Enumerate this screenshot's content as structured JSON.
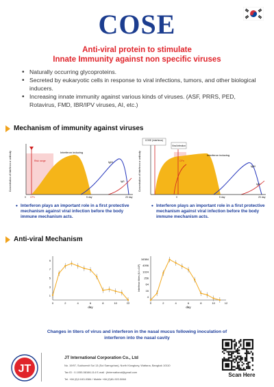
{
  "title": "COSE",
  "subtitle_line1": "Anti-viral protein to stimulate",
  "subtitle_line2": "Innate Immunity against non specific viruses",
  "bullets": [
    "Naturally occurring glycoproteins.",
    "Secreted by eukaryotic cells in response to viral infections, tumors, and other biological inducers.",
    "Increasing innate immunity against various kinds of viruses. (ASF, PRRS, PED, Rotavirus, FMD, IBR/IPV viruses, AI, etc.)"
  ],
  "section1": "Mechanism of immunity against viruses",
  "chart1": {
    "ylabel": "Concentration of Interferon or antibody",
    "label_interferon": "Interferon inducing",
    "label_igm": "IgM",
    "label_igg": "IgG",
    "label_risk": "Risk range",
    "x_ticks": [
      "0",
      "CPn",
      "5 day",
      "20 day"
    ]
  },
  "chart2": {
    "ylabel": "Concentration of Interferon or antibody",
    "label_cose": "COSE (Interferon)",
    "label_viral": "Viral Infection",
    "label_interferon": "Interferon inducing",
    "label_risk": "CPn",
    "label_igm": "IgM",
    "label_igg": "IgG",
    "x_ticks": [
      "0",
      "5 day",
      "20 day"
    ]
  },
  "note1": "Interferon plays an important role in a first protective mechanism against viral infection before the body immune mechanism acts.",
  "note2": "Interferon plays an important role in a first protective mechanism against viral infection before the body immune mechanism acts.",
  "section2": "Anti-viral Mechanism",
  "chart_data": [
    {
      "type": "line",
      "xlabel": "day",
      "ylabel": "",
      "x": [
        0,
        1,
        2,
        3,
        4,
        5,
        6,
        7,
        8,
        9,
        10,
        11,
        12
      ],
      "values": [
        1,
        5.5,
        7,
        7.5,
        7,
        6.5,
        6.2,
        4.8,
        2,
        2.2,
        1.8,
        1.5,
        0
      ],
      "y_ticks": [
        "1",
        "3",
        "5",
        "7",
        "9"
      ],
      "x_ticks": [
        "0",
        "2",
        "4",
        "6",
        "8",
        "10",
        "12"
      ],
      "ylim": [
        0,
        9
      ],
      "xlim": [
        0,
        12
      ]
    },
    {
      "type": "line",
      "xlabel": "day",
      "ylabel": "Interferon titres (IU x 10³)",
      "x": [
        0,
        1,
        2,
        3,
        4,
        5,
        6,
        7,
        8,
        9,
        10,
        11
      ],
      "values": [
        0,
        2,
        8,
        12,
        11,
        10,
        9,
        6,
        2,
        1.5,
        0.5,
        0
      ],
      "y_ticks": [
        "4",
        "16",
        "64",
        "256",
        "1024",
        "4096",
        "16384"
      ],
      "x_ticks": [
        "0",
        "2",
        "4",
        "6",
        "8",
        "10",
        "12"
      ],
      "ylim": [
        0,
        13
      ],
      "xlim": [
        0,
        12
      ]
    }
  ],
  "caption_line1": "Changes in titers of virus and interferon in the nasal mucus following inoculation of",
  "caption_line2": "interferon into the nasal cavity",
  "logo_text": "JT",
  "company": "JT International Corporation Co., Ltd",
  "address_line1": "No. 19/97, Sukhumvit Soi 13 (Soi Saengchan), North Klongtoey, Wattana, Bangkok 10110",
  "address_line2": "Tax ID : 0-1055-58166-114     E-mail : jtinternational@gmail.com",
  "address_line3": "Tel. +66 (0)2-043-0384 / Mobile +66 (0)81-922-5068",
  "scan": "Scan Here",
  "colors": {
    "title": "#1c3d8f",
    "accent": "#e0242b",
    "note": "#1b3c9a",
    "fill": "#f5b519",
    "line": "#f2a81c"
  }
}
